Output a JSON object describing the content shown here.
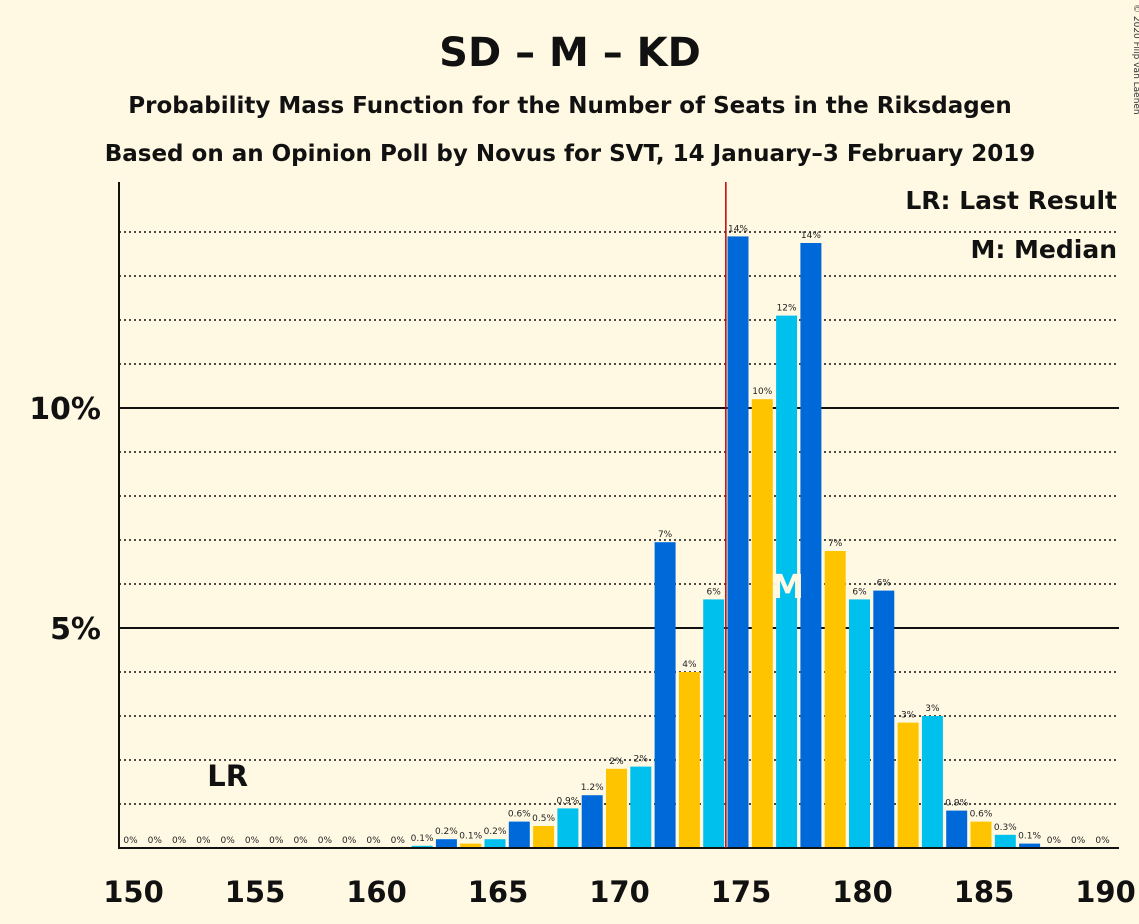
{
  "chart_data": {
    "type": "bar",
    "title": "SD – M – KD",
    "subtitle": "Probability Mass Function for the Number of Seats in the Riksdagen",
    "subtitle2": "Based on an Opinion Poll by Novus for SVT, 14 January–3 February 2019",
    "copyright": "© 2020 Filip van Laenen",
    "legend": {
      "last_result": "LR: Last Result",
      "median": "M: Median",
      "placement": "top-right"
    },
    "x": [
      150,
      151,
      152,
      153,
      154,
      155,
      156,
      157,
      158,
      159,
      160,
      161,
      162,
      163,
      164,
      165,
      166,
      167,
      168,
      169,
      170,
      171,
      172,
      173,
      174,
      175,
      176,
      177,
      178,
      179,
      180,
      181,
      182,
      183,
      184,
      185,
      186,
      187,
      188,
      189,
      190
    ],
    "values": [
      0,
      0,
      0,
      0,
      0,
      0,
      0,
      0,
      0,
      0,
      0,
      0,
      0.05,
      0.2,
      0.1,
      0.2,
      0.6,
      0.5,
      0.9,
      1.2,
      1.8,
      1.85,
      6.95,
      4.0,
      5.65,
      13.9,
      10.2,
      12.1,
      13.75,
      6.75,
      5.65,
      5.85,
      2.85,
      3.0,
      0.85,
      0.6,
      0.3,
      0.1,
      0,
      0,
      0
    ],
    "labels": [
      "0%",
      "0%",
      "0%",
      "0%",
      "0%",
      "0%",
      "0%",
      "0%",
      "0%",
      "0%",
      "0%",
      "0%",
      "0.1%",
      "0.2%",
      "0.1%",
      "0.2%",
      "0.6%",
      "0.5%",
      "0.9%",
      "1.2%",
      "2%",
      "2%",
      "7%",
      "4%",
      "6%",
      "14%",
      "10%",
      "12%",
      "14%",
      "7%",
      "6%",
      "6%",
      "3%",
      "3%",
      "0.9%",
      "0.6%",
      "0.3%",
      "0.1%",
      "0%",
      "0%",
      "0%"
    ],
    "colors": [
      "#00C0EE",
      "#0069D9",
      "#FFC400"
    ],
    "majority_line": 175,
    "last_result": {
      "seat": 154,
      "label": "LR"
    },
    "median": {
      "seat": 177,
      "label": "M"
    },
    "xlabel": "",
    "ylabel": "",
    "xlim": [
      150,
      190
    ],
    "ylim": [
      0,
      15
    ],
    "x_ticks": [
      150,
      155,
      160,
      165,
      170,
      175,
      180,
      185,
      190
    ],
    "y_ticks": [
      {
        "value": 5,
        "label": "5%"
      },
      {
        "value": 10,
        "label": "10%"
      }
    ],
    "grid": {
      "solid": [
        5,
        10
      ],
      "dotted": [
        1,
        2,
        3,
        4,
        6,
        7,
        8,
        9,
        11,
        12,
        13,
        14
      ]
    }
  }
}
